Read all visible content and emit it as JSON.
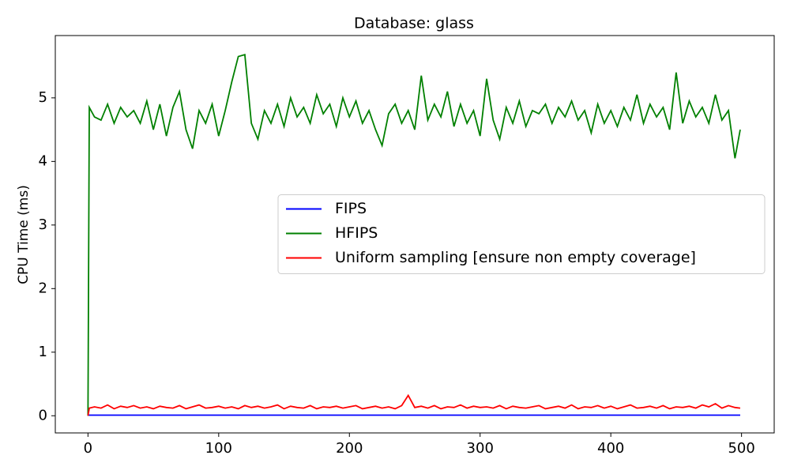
{
  "chart_data": {
    "type": "line",
    "title": "Database: glass",
    "y_label": "CPU Time (ms)",
    "x": [
      0,
      1,
      5,
      10,
      15,
      20,
      25,
      30,
      35,
      40,
      45,
      50,
      55,
      60,
      65,
      70,
      75,
      80,
      85,
      90,
      95,
      100,
      105,
      110,
      115,
      120,
      125,
      130,
      135,
      140,
      145,
      150,
      155,
      160,
      165,
      170,
      175,
      180,
      185,
      190,
      195,
      200,
      205,
      210,
      215,
      220,
      225,
      230,
      235,
      240,
      245,
      250,
      255,
      260,
      265,
      270,
      275,
      280,
      285,
      290,
      295,
      300,
      305,
      310,
      315,
      320,
      325,
      330,
      335,
      340,
      345,
      350,
      355,
      360,
      365,
      370,
      375,
      380,
      385,
      390,
      395,
      400,
      405,
      410,
      415,
      420,
      425,
      430,
      435,
      440,
      445,
      450,
      455,
      460,
      465,
      470,
      475,
      480,
      485,
      490,
      495,
      499
    ],
    "series": [
      {
        "name": "FIPS",
        "color": "#0000ff",
        "values": [
          0.01,
          0.01,
          0.01,
          0.01,
          0.01,
          0.01,
          0.01,
          0.01,
          0.01,
          0.01,
          0.01,
          0.01,
          0.01,
          0.01,
          0.01,
          0.01,
          0.01,
          0.01,
          0.01,
          0.01,
          0.01,
          0.01,
          0.01,
          0.01,
          0.01,
          0.01,
          0.01,
          0.01,
          0.01,
          0.01,
          0.01,
          0.01,
          0.01,
          0.01,
          0.01,
          0.01,
          0.01,
          0.01,
          0.01,
          0.01,
          0.01,
          0.01,
          0.01,
          0.01,
          0.01,
          0.01,
          0.01,
          0.01,
          0.01,
          0.01,
          0.01,
          0.01,
          0.01,
          0.01,
          0.01,
          0.01,
          0.01,
          0.01,
          0.01,
          0.01,
          0.01,
          0.01,
          0.01,
          0.01,
          0.01,
          0.01,
          0.01,
          0.01,
          0.01,
          0.01,
          0.01,
          0.01,
          0.01,
          0.01,
          0.01,
          0.01,
          0.01,
          0.01,
          0.01,
          0.01,
          0.01,
          0.01,
          0.01,
          0.01,
          0.01,
          0.01,
          0.01,
          0.01,
          0.01,
          0.01,
          0.01,
          0.01,
          0.01,
          0.01,
          0.01,
          0.01,
          0.01,
          0.01,
          0.01,
          0.01,
          0.01,
          0.01
        ]
      },
      {
        "name": "HFIPS",
        "color": "#008000",
        "values": [
          0.0,
          4.85,
          4.7,
          4.65,
          4.9,
          4.6,
          4.85,
          4.7,
          4.8,
          4.6,
          4.95,
          4.5,
          4.9,
          4.4,
          4.85,
          5.1,
          4.5,
          4.2,
          4.8,
          4.6,
          4.9,
          4.4,
          4.8,
          5.25,
          5.65,
          5.68,
          4.6,
          4.35,
          4.8,
          4.6,
          4.9,
          4.55,
          5.0,
          4.7,
          4.85,
          4.6,
          5.05,
          4.75,
          4.9,
          4.55,
          5.0,
          4.7,
          4.95,
          4.6,
          4.8,
          4.5,
          4.25,
          4.75,
          4.9,
          4.6,
          4.8,
          4.5,
          5.35,
          4.65,
          4.9,
          4.7,
          5.1,
          4.55,
          4.9,
          4.6,
          4.8,
          4.4,
          5.3,
          4.65,
          4.35,
          4.85,
          4.6,
          4.95,
          4.55,
          4.8,
          4.75,
          4.9,
          4.6,
          4.85,
          4.7,
          4.95,
          4.65,
          4.8,
          4.45,
          4.9,
          4.6,
          4.8,
          4.55,
          4.85,
          4.65,
          5.05,
          4.6,
          4.9,
          4.7,
          4.85,
          4.5,
          5.4,
          4.6,
          4.95,
          4.7,
          4.85,
          4.6,
          5.05,
          4.65,
          4.8,
          4.05,
          4.5
        ]
      },
      {
        "name": "Uniform sampling [ensure non empty coverage]",
        "color": "#ff0000",
        "values": [
          0.0,
          0.12,
          0.14,
          0.12,
          0.17,
          0.11,
          0.15,
          0.13,
          0.16,
          0.12,
          0.14,
          0.11,
          0.15,
          0.13,
          0.12,
          0.16,
          0.11,
          0.14,
          0.17,
          0.12,
          0.13,
          0.15,
          0.12,
          0.14,
          0.11,
          0.16,
          0.13,
          0.15,
          0.12,
          0.14,
          0.17,
          0.11,
          0.15,
          0.13,
          0.12,
          0.16,
          0.11,
          0.14,
          0.13,
          0.15,
          0.12,
          0.14,
          0.16,
          0.11,
          0.13,
          0.15,
          0.12,
          0.14,
          0.11,
          0.16,
          0.32,
          0.13,
          0.15,
          0.12,
          0.16,
          0.11,
          0.14,
          0.13,
          0.17,
          0.12,
          0.15,
          0.13,
          0.14,
          0.12,
          0.16,
          0.11,
          0.15,
          0.13,
          0.12,
          0.14,
          0.16,
          0.11,
          0.13,
          0.15,
          0.12,
          0.17,
          0.11,
          0.14,
          0.13,
          0.16,
          0.12,
          0.15,
          0.11,
          0.14,
          0.17,
          0.12,
          0.13,
          0.15,
          0.12,
          0.16,
          0.11,
          0.14,
          0.13,
          0.15,
          0.12,
          0.17,
          0.14,
          0.19,
          0.12,
          0.16,
          0.13,
          0.12
        ]
      }
    ],
    "xlim": [
      -25,
      525
    ],
    "ylim": [
      -0.27,
      5.98
    ],
    "xticks": [
      0,
      100,
      200,
      300,
      400,
      500
    ],
    "yticks": [
      0,
      1,
      2,
      3,
      4,
      5
    ],
    "grid": false,
    "legend": "center right"
  }
}
